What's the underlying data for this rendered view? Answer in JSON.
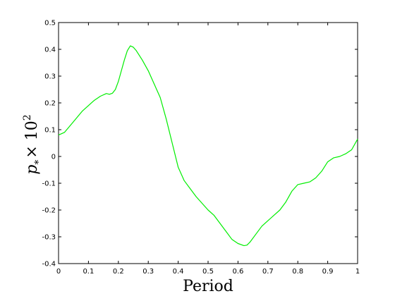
{
  "chart_data": {
    "type": "line",
    "title": "",
    "xlabel": "Period",
    "ylabel": {
      "base": "p",
      "subscript": "*",
      "multiplier": "× 10",
      "exponent": "2"
    },
    "xlim": [
      0,
      1
    ],
    "ylim": [
      -0.4,
      0.5
    ],
    "grid": false,
    "xticks": [
      0,
      0.1,
      0.2,
      0.3,
      0.4,
      0.5,
      0.6,
      0.7,
      0.8,
      0.9,
      1
    ],
    "xtick_labels": [
      "0",
      "0.1",
      "0.2",
      "0.3",
      "0.4",
      "0.5",
      "0.6",
      "0.7",
      "0.8",
      "0.9",
      "1"
    ],
    "yticks": [
      -0.4,
      -0.3,
      -0.2,
      -0.1,
      0,
      0.1,
      0.2,
      0.3,
      0.4,
      0.5
    ],
    "ytick_labels": [
      "-0.4",
      "-0.3",
      "-0.2",
      "-0.1",
      "0",
      "0.1",
      "0.2",
      "0.3",
      "0.4",
      "0.5"
    ],
    "series": [
      {
        "color": "#00ee00",
        "x": [
          0.0,
          0.02,
          0.05,
          0.08,
          0.1,
          0.12,
          0.14,
          0.16,
          0.17,
          0.18,
          0.19,
          0.2,
          0.21,
          0.22,
          0.23,
          0.24,
          0.25,
          0.26,
          0.28,
          0.3,
          0.32,
          0.34,
          0.36,
          0.38,
          0.4,
          0.42,
          0.44,
          0.46,
          0.48,
          0.5,
          0.52,
          0.54,
          0.56,
          0.58,
          0.6,
          0.62,
          0.63,
          0.64,
          0.66,
          0.68,
          0.7,
          0.72,
          0.74,
          0.76,
          0.78,
          0.8,
          0.82,
          0.84,
          0.86,
          0.88,
          0.9,
          0.92,
          0.94,
          0.96,
          0.98,
          1.0
        ],
        "y": [
          0.08,
          0.09,
          0.13,
          0.17,
          0.19,
          0.21,
          0.225,
          0.235,
          0.232,
          0.236,
          0.25,
          0.28,
          0.32,
          0.36,
          0.395,
          0.413,
          0.408,
          0.395,
          0.36,
          0.32,
          0.27,
          0.22,
          0.14,
          0.05,
          -0.04,
          -0.09,
          -0.12,
          -0.15,
          -0.175,
          -0.2,
          -0.22,
          -0.25,
          -0.28,
          -0.31,
          -0.325,
          -0.333,
          -0.331,
          -0.32,
          -0.29,
          -0.26,
          -0.24,
          -0.22,
          -0.2,
          -0.17,
          -0.13,
          -0.105,
          -0.1,
          -0.095,
          -0.08,
          -0.055,
          -0.02,
          -0.005,
          0.0,
          0.01,
          0.025,
          0.065
        ]
      }
    ]
  }
}
